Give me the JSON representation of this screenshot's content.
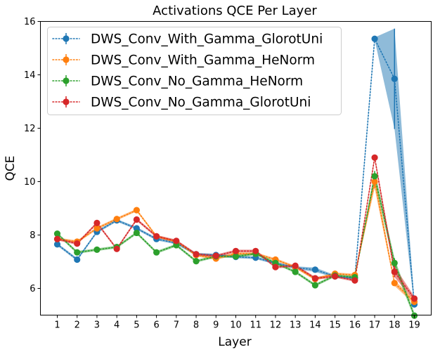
{
  "chart_data": {
    "type": "line",
    "title": "Activations QCE Per Layer",
    "xlabel": "Layer",
    "ylabel": "QCE",
    "x": [
      1,
      2,
      3,
      4,
      5,
      6,
      7,
      8,
      9,
      10,
      11,
      12,
      13,
      14,
      15,
      16,
      17,
      18,
      19
    ],
    "xlim": [
      0.15,
      19.85
    ],
    "ylim": [
      5,
      16
    ],
    "yticks": [
      6,
      8,
      10,
      12,
      14,
      16
    ],
    "legend_position": "top-left",
    "series": [
      {
        "name": "DWS_Conv_With_Gamma_GlorotUni",
        "color": "#1f77b4",
        "values": [
          7.65,
          7.08,
          8.12,
          8.55,
          8.25,
          7.85,
          7.7,
          7.28,
          7.25,
          7.18,
          7.15,
          6.95,
          6.78,
          6.7,
          6.45,
          6.38,
          15.35,
          13.85,
          5.4
        ],
        "errors": [
          0.05,
          0.05,
          0.05,
          0.05,
          0.05,
          0.05,
          0.05,
          0.05,
          0.05,
          0.05,
          0.05,
          0.05,
          0.05,
          0.08,
          0.05,
          0.05,
          0.05,
          1.88,
          0.1
        ]
      },
      {
        "name": "DWS_Conv_With_Gamma_HeNorm",
        "color": "#ff7f0e",
        "values": [
          7.85,
          7.75,
          8.25,
          8.6,
          8.93,
          7.95,
          7.75,
          7.25,
          7.12,
          7.3,
          7.3,
          7.08,
          6.8,
          6.35,
          6.55,
          6.5,
          10.0,
          6.2,
          5.5
        ],
        "errors": [
          0.05,
          0.05,
          0.05,
          0.05,
          0.05,
          0.05,
          0.05,
          0.05,
          0.05,
          0.05,
          0.05,
          0.05,
          0.05,
          0.05,
          0.05,
          0.05,
          0.25,
          0.1,
          0.1
        ]
      },
      {
        "name": "DWS_Conv_No_Gamma_HeNorm",
        "color": "#2ca02c",
        "values": [
          8.05,
          7.35,
          7.45,
          7.55,
          8.08,
          7.35,
          7.62,
          7.02,
          7.2,
          7.2,
          7.3,
          6.95,
          6.62,
          6.12,
          6.48,
          6.42,
          10.2,
          6.95,
          4.98
        ],
        "errors": [
          0.05,
          0.05,
          0.05,
          0.05,
          0.05,
          0.05,
          0.05,
          0.05,
          0.05,
          0.05,
          0.05,
          0.05,
          0.05,
          0.05,
          0.05,
          0.05,
          0.2,
          0.18,
          0.1
        ]
      },
      {
        "name": "DWS_Conv_No_Gamma_GlorotUni",
        "color": "#d62728",
        "values": [
          7.85,
          7.68,
          8.45,
          7.48,
          8.58,
          7.95,
          7.78,
          7.28,
          7.22,
          7.4,
          7.4,
          6.8,
          6.85,
          6.38,
          6.45,
          6.3,
          10.9,
          6.62,
          5.62
        ],
        "errors": [
          0.05,
          0.05,
          0.05,
          0.05,
          0.05,
          0.05,
          0.05,
          0.05,
          0.05,
          0.05,
          0.05,
          0.05,
          0.05,
          0.05,
          0.05,
          0.05,
          0.1,
          0.2,
          0.08
        ]
      }
    ]
  }
}
